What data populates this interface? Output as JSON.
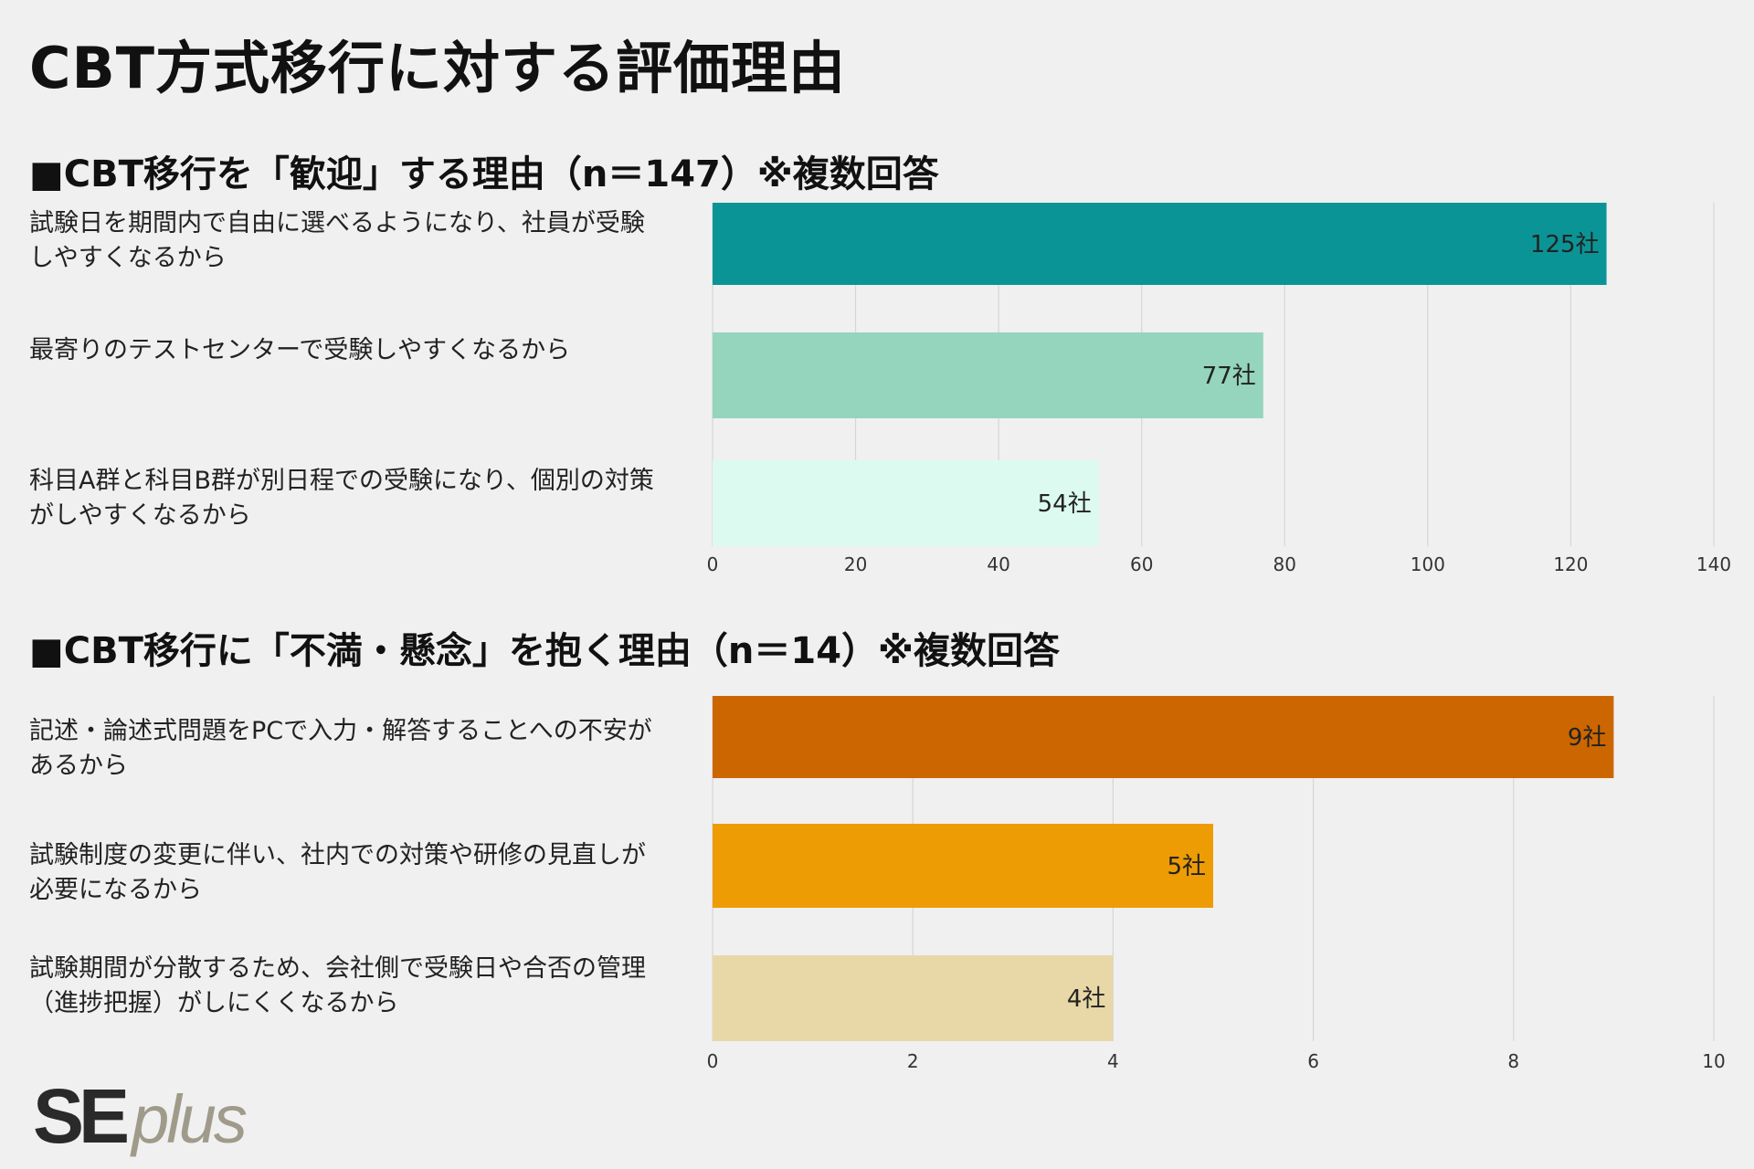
{
  "title": "CBT方式移行に対する評価理由",
  "logo": {
    "se": "SE",
    "plus": "plus"
  },
  "chart_data": [
    {
      "type": "bar",
      "orientation": "horizontal",
      "title": "■CBT移行を「歓迎」する理由（n＝147）※複数回答",
      "categories": [
        "試験日を期間内で自由に選べるようになり、社員が受験しやすくなるから",
        "最寄りのテストセンターで受験しやすくなるから",
        "科目A群と科目B群が別日程での受験になり、個別の対策がしやすくなるから"
      ],
      "values": [
        125,
        77,
        54
      ],
      "value_labels": [
        "125社",
        "77社",
        "54社"
      ],
      "colors": [
        "#0b9496",
        "#95d4bd",
        "#dcfaf0"
      ],
      "xlim": [
        0,
        140
      ],
      "xticks": [
        0,
        20,
        40,
        60,
        80,
        100,
        120,
        140
      ],
      "grid": true
    },
    {
      "type": "bar",
      "orientation": "horizontal",
      "title": "■CBT移行に「不満・懸念」を抱く理由（n＝14）※複数回答",
      "categories": [
        "記述・論述式問題をPCで入力・解答することへの不安があるから",
        "試験制度の変更に伴い、社内での対策や研修の見直しが必要になるから",
        "試験期間が分散するため、会社側で受験日や合否の管理（進捗把握）がしにくくなるから"
      ],
      "values": [
        9,
        5,
        4
      ],
      "value_labels": [
        "9社",
        "5社",
        "4社"
      ],
      "colors": [
        "#cc6600",
        "#ee9c04",
        "#e9d8a7"
      ],
      "xlim": [
        0,
        10
      ],
      "xticks": [
        0,
        2,
        4,
        6,
        8,
        10
      ],
      "grid": true
    }
  ]
}
